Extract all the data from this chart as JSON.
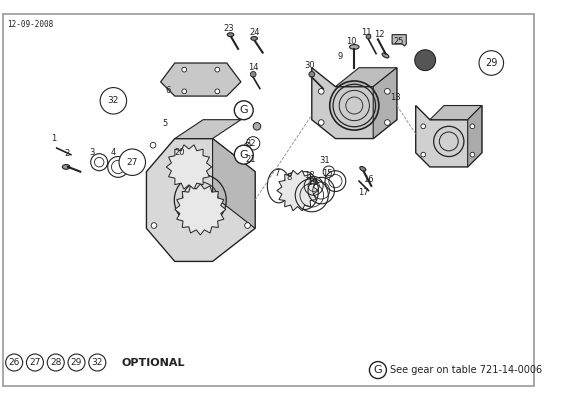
{
  "date_stamp": "12-09-2008",
  "border_color": "#999999",
  "bg_color": "#ffffff",
  "line_color": "#555555",
  "dark_color": "#222222",
  "gear_label": "G",
  "gear_note": "See gear on table 721-14-0006",
  "optional_label": "OPTIONAL",
  "optional_circles": [
    "26",
    "27",
    "28",
    "29",
    "32"
  ],
  "figsize": [
    5.68,
    4.0
  ],
  "dpi": 100
}
